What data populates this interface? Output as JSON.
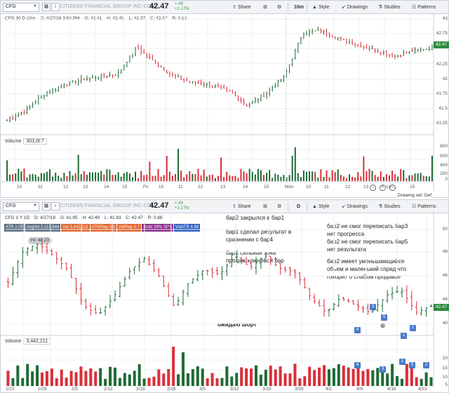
{
  "top": {
    "symbol": "CFG",
    "company": "CITIZENS FINANCIAL GROUP INC COM",
    "price": "42.47",
    "change_up": "+.49",
    "change_pct": "+1.17%",
    "share": "Share",
    "interval": "10m",
    "style": "Style",
    "drawings": "Drawings",
    "studies": "Studies",
    "patterns": "Patterns",
    "header": {
      "title": "CFG 30 D 10m",
      "date": "D: 4/27/18 3:50 PM",
      "open": "O: 42.41",
      "high": "H: 42.49",
      "low": "L: 42.37",
      "close": "C: 42.47",
      "range": "R: 0.12"
    },
    "price_axis": [
      "43",
      "42.75",
      "42.47",
      "42.25",
      "42",
      "41.75",
      "41.5",
      "41.25"
    ],
    "price_flag": "42.47",
    "volume_label": "Volume",
    "volume_value": "303,007",
    "volume_axis": [
      "800",
      "600",
      "400",
      "200",
      "0"
    ],
    "x_labels": [
      "10",
      "11",
      "12",
      "13",
      "14",
      "15",
      "Fri",
      "10",
      "11",
      "12",
      "13",
      "14",
      "15",
      "Mon",
      "10",
      "11",
      "12",
      "13",
      "14",
      "15"
    ],
    "drawing_set": "Drawing set: Def"
  },
  "bottom": {
    "symbol": "CFG",
    "company": "CITIZENS FINANCIAL GROUP INC COM",
    "price": "42.47",
    "change_up": "+.49",
    "change_pct": "+1.17%",
    "share": "Share",
    "interval": "D",
    "style": "Style",
    "drawings": "Drawings",
    "studies": "Studies",
    "patterns": "Patterns",
    "header": {
      "title": "CFG 1 Y 1D",
      "date": "D: 4/27/18",
      "open": "O: 41.95",
      "high": "H: 42.49",
      "low": "L: 41.83",
      "close": "C: 42.47",
      "range": "R: 0.66"
    },
    "studies_bar": [
      {
        "text": "ATR 1.05",
        "color": "#5a6e80"
      },
      {
        "text": "AvgVol 5,119,644",
        "color": "#5a6e80"
      },
      {
        "text": "Vol 3,442,211",
        "color": "#e0662a"
      },
      {
        "text": "ATRPlay 0.6",
        "color": "#e0662a"
      },
      {
        "text": "VolPlay 0.7",
        "color": "#e0662a"
      },
      {
        "text": "Smbl 39% SPY",
        "color": "#8a2a8a"
      },
      {
        "text": "VolATR 4.88",
        "color": "#2f5fc4"
      }
    ],
    "hi_tag": "Hi: 48.23",
    "price_axis": [
      "50",
      "48",
      "46",
      "44",
      "42.47",
      "40"
    ],
    "price_flag": "42.47",
    "volume_label": "Volume",
    "volume_value": "3,442,211",
    "volume_axis": [
      "20",
      "15",
      "10",
      "5"
    ],
    "x_labels": [
      "1/22",
      "1/29",
      "2/5",
      "2/12",
      "2/19",
      "2/26",
      "3/5",
      "3/12",
      "3/19",
      "3/26",
      "4/2",
      "4/9",
      "4/16",
      "4/23"
    ],
    "annotations": {
      "a1": "бар2 закрылся в бар1",
      "a2": "бар1 сделал результат в\nсравнении с бар4",
      "a3": "бар1 сильная зона\nпродаж ключевой бар",
      "a4": "бар2 не смог переписать бар3\nнет прогресса\nбар2 не смог переписать бар5\nнет результата",
      "a5": "бар2 имеет уменьшающийся\nобьем и маленький спред что\nговорит о слабом продавце",
      "a6": "ожидаю шорт"
    },
    "markers_price": [
      "4",
      "5",
      "3",
      "1",
      "2"
    ],
    "markers_volume": [
      "4",
      "3",
      "1",
      "5",
      "2"
    ]
  },
  "colors": {
    "up": "#1f6b35",
    "down": "#d9303a",
    "accent": "#2e8b3e"
  }
}
